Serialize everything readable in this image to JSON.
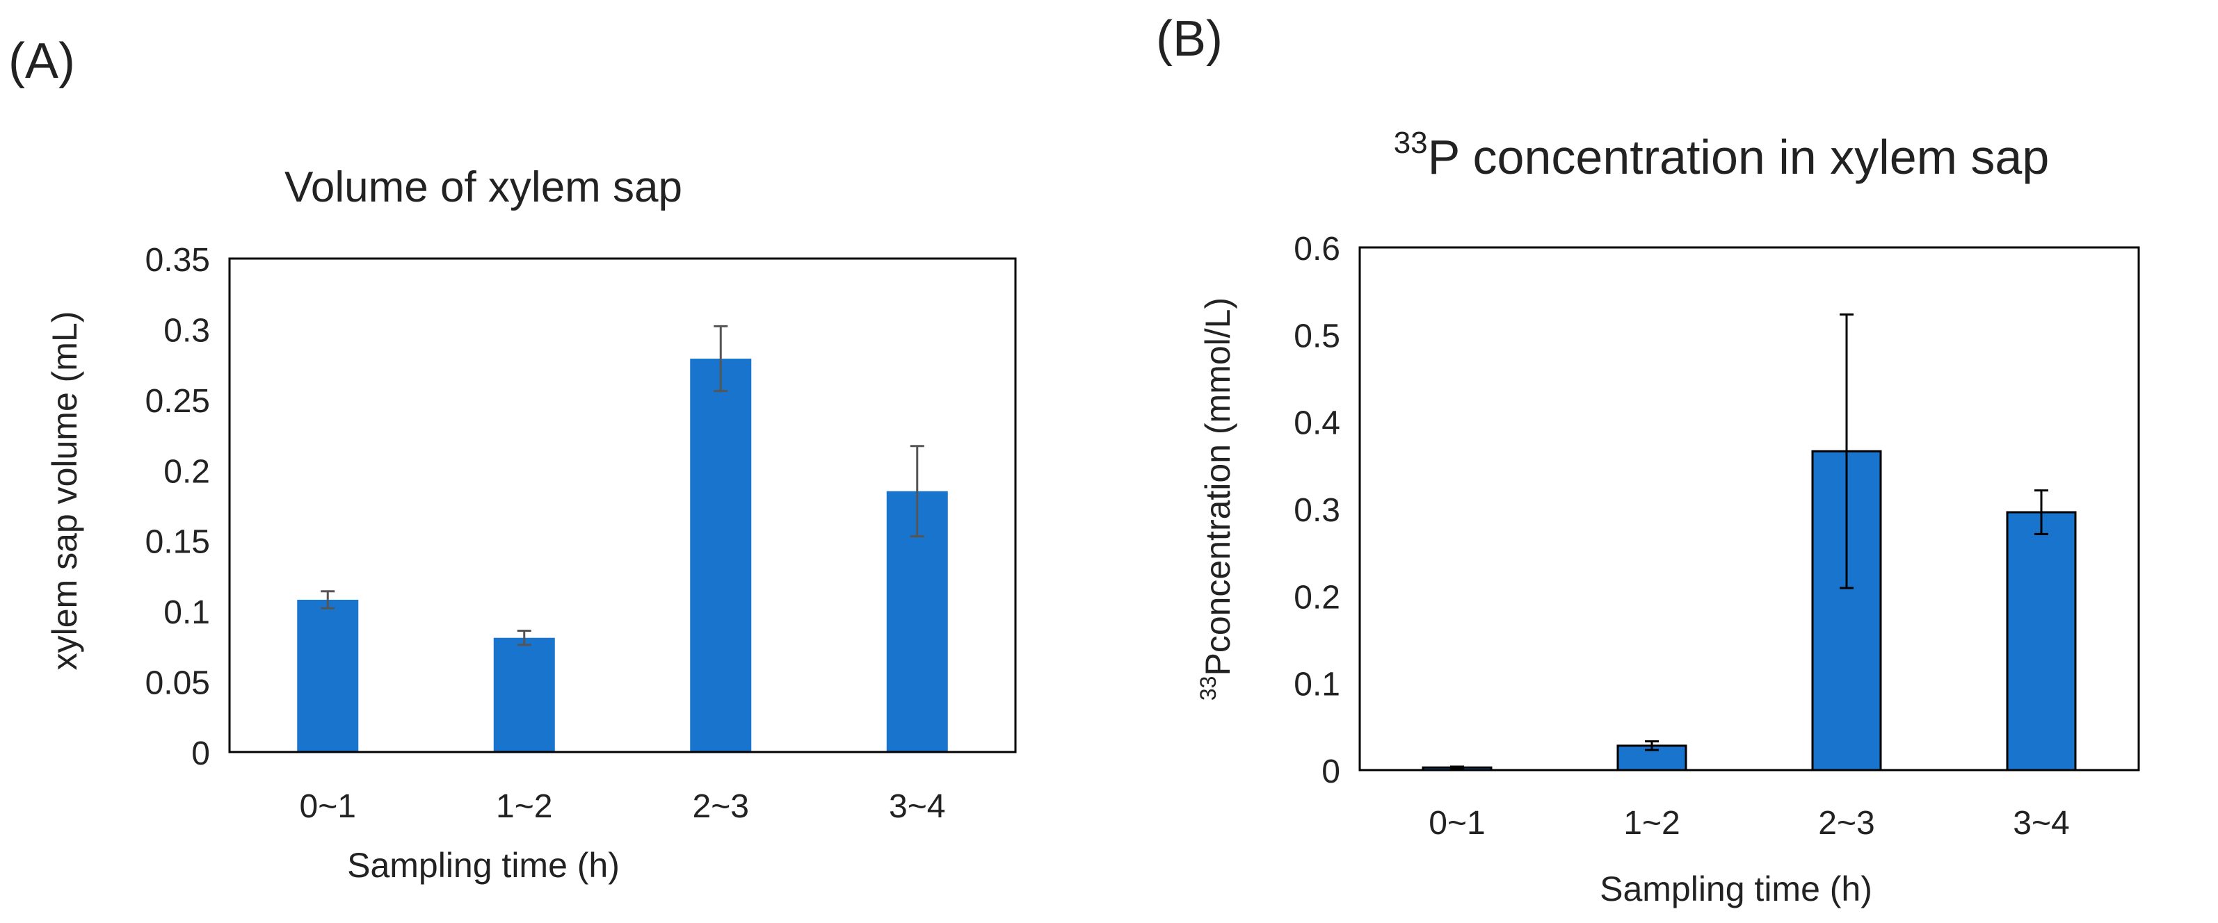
{
  "colors": {
    "bar": "#1874CD",
    "axis": "#000000",
    "text": "#222222",
    "errorbar_a": "#555555",
    "errorbar_b": "#000000"
  },
  "chart_data": [
    {
      "panel_label": "(A)",
      "type": "bar",
      "title": "Volume of xylem sap",
      "xlabel": "Sampling time (h)",
      "ylabel": "xylem sap volume (mL)",
      "categories": [
        "0~1",
        "1~2",
        "2~3",
        "3~4"
      ],
      "values": [
        0.108,
        0.081,
        0.279,
        0.185
      ],
      "errors": [
        0.006,
        0.005,
        0.023,
        0.032
      ],
      "ylim": [
        0,
        0.35
      ],
      "yticks": [
        "0",
        "0.05",
        "0.1",
        "0.15",
        "0.2",
        "0.25",
        "0.3",
        "0.35"
      ],
      "bar_border": false,
      "grid": false
    },
    {
      "panel_label": "(B)",
      "type": "bar",
      "title_sup": "33",
      "title": "P concentration in xylem sap",
      "xlabel": "Sampling time (h)",
      "ylabel_sup": "33",
      "ylabel": "Pconcentration (mmol/L)",
      "categories": [
        "0~1",
        "1~2",
        "2~3",
        "3~4"
      ],
      "values": [
        0.003,
        0.028,
        0.366,
        0.296
      ],
      "errors": [
        0.001,
        0.005,
        0.157,
        0.025
      ],
      "ylim": [
        0,
        0.6
      ],
      "yticks": [
        "0",
        "0.1",
        "0.2",
        "0.3",
        "0.4",
        "0.5",
        "0.6"
      ],
      "bar_border": true,
      "grid": false
    }
  ]
}
